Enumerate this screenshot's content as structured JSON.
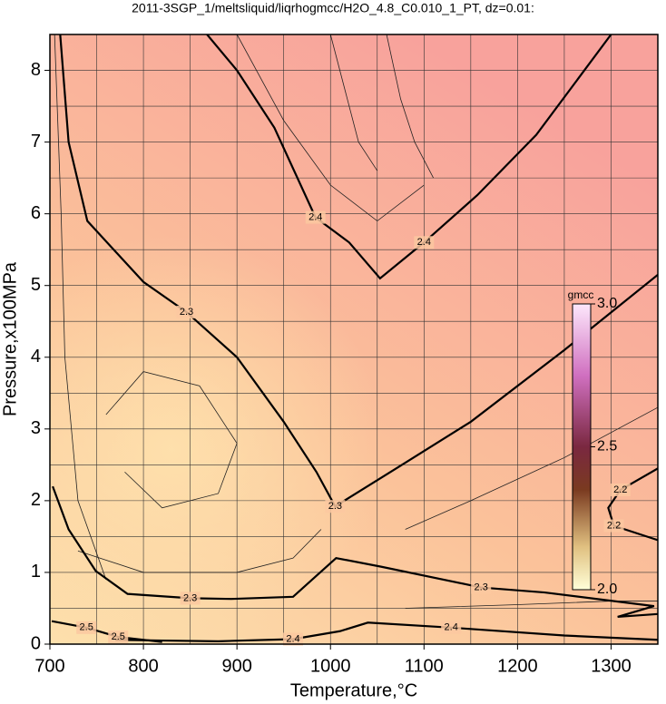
{
  "chart_data": {
    "type": "contour",
    "title": "2011-3SGP_1/meltsliquid/liqrhogmcc/H2O_4.8_C0.010_1_PT, dz=0.01:",
    "x_label": "Temperature,°C",
    "y_label": "Pressure,x100MPa",
    "xlim": [
      700,
      1350
    ],
    "ylim": [
      0,
      8.5
    ],
    "xticks": [
      700,
      800,
      900,
      1000,
      1100,
      1200,
      1300
    ],
    "yticks": [
      0,
      1,
      2,
      3,
      4,
      5,
      6,
      7,
      8
    ],
    "xgrid": [
      750,
      800,
      850,
      900,
      950,
      1000,
      1050,
      1100,
      1150,
      1200,
      1250,
      1300
    ],
    "ygrid": [
      0.5,
      1,
      1.5,
      2,
      2.5,
      3,
      3.5,
      4,
      4.5,
      5,
      5.5,
      6,
      6.5,
      7,
      7.5,
      8
    ],
    "contours": [
      {
        "level": 2.4,
        "x": [
          868,
          900,
          940,
          984,
          1020,
          1053,
          1100,
          1157,
          1220,
          1300
        ],
        "y": [
          8.5,
          8.0,
          7.2,
          5.95,
          5.6,
          5.1,
          5.6,
          6.26,
          7.1,
          8.5
        ]
      },
      {
        "level": 2.3,
        "x": [
          711,
          720,
          740,
          800,
          846,
          900,
          950,
          985,
          1005,
          1074,
          1150,
          1250,
          1350
        ],
        "y": [
          8.5,
          7.0,
          5.9,
          5.05,
          4.63,
          4.0,
          3.1,
          2.4,
          1.92,
          2.48,
          3.1,
          4.1,
          5.15
        ]
      },
      {
        "level": 2.3,
        "x": [
          703,
          720,
          749,
          783,
          850,
          894,
          960,
          1006,
          1054,
          1161,
          1229,
          1346,
          1307,
          1350
        ],
        "y": [
          2.2,
          1.6,
          1.02,
          0.7,
          0.64,
          0.63,
          0.66,
          1.2,
          1.08,
          0.79,
          0.72,
          0.53,
          0.38,
          0.42
        ]
      },
      {
        "level": 2.4,
        "x": [
          770,
          820,
          880,
          960,
          1010,
          1040,
          1129,
          1250,
          1350
        ],
        "y": [
          0.06,
          0.05,
          0.04,
          0.07,
          0.18,
          0.3,
          0.23,
          0.12,
          0.06
        ]
      },
      {
        "level": 2.2,
        "x": [
          1350,
          1310,
          1297,
          1303,
          1350
        ],
        "y": [
          2.45,
          2.15,
          1.9,
          1.65,
          1.45
        ]
      },
      {
        "level": 2.5,
        "x": [
          702,
          739,
          773,
          820
        ],
        "y": [
          0.32,
          0.23,
          0.1,
          0.03
        ]
      }
    ],
    "thin_contours": [
      {
        "x": [
          705,
          712,
          716,
          730,
          760
        ],
        "y": [
          8.5,
          6.0,
          4.0,
          2.0,
          0.9
        ]
      },
      {
        "x": [
          760,
          800,
          860,
          900,
          880,
          820,
          780
        ],
        "y": [
          3.2,
          3.8,
          3.6,
          2.8,
          2.1,
          1.9,
          2.4
        ]
      },
      {
        "x": [
          730,
          800,
          900,
          960,
          990
        ],
        "y": [
          1.3,
          1.0,
          1.0,
          1.2,
          1.6
        ]
      },
      {
        "x": [
          1000,
          1020,
          1030,
          1050
        ],
        "y": [
          8.5,
          7.5,
          7.0,
          6.6
        ]
      },
      {
        "x": [
          1060,
          1075,
          1090,
          1110
        ],
        "y": [
          8.5,
          7.6,
          7.0,
          6.5
        ]
      },
      {
        "x": [
          1080,
          1150,
          1250,
          1350
        ],
        "y": [
          1.6,
          2.0,
          2.6,
          3.3
        ]
      },
      {
        "x": [
          1080,
          1200,
          1300,
          1350
        ],
        "y": [
          0.5,
          0.55,
          0.6,
          0.6
        ]
      },
      {
        "x": [
          900,
          950,
          1000,
          1050,
          1100
        ],
        "y": [
          8.5,
          7.3,
          6.4,
          5.9,
          6.4
        ]
      }
    ],
    "colorbar": {
      "label": "gmcc",
      "lim": [
        2,
        3
      ],
      "ticks": [
        {
          "value": 2,
          "label": "2.0"
        },
        2.5,
        {
          "value": 3,
          "label": "3.0"
        }
      ]
    },
    "grid": true
  }
}
